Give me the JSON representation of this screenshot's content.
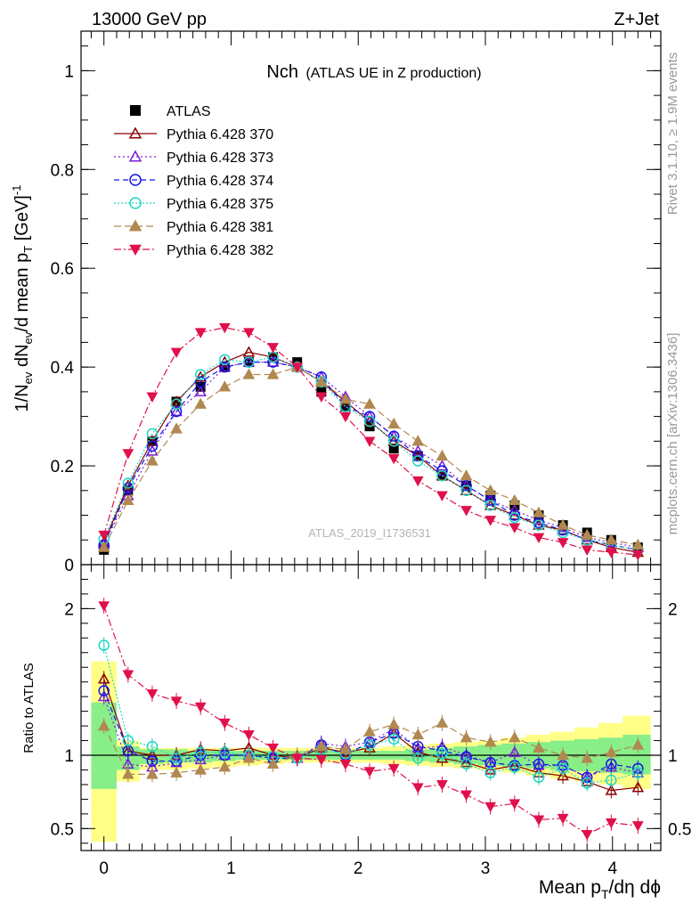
{
  "header": {
    "left": "13000 GeV pp",
    "right": "Z+Jet"
  },
  "side_text": {
    "rivet": "Rivet 3.1.10, ≥ 1.9M events",
    "mcplots": "mcplots.cern.ch [arXiv:1306.3436]"
  },
  "colors": {
    "atlas": "#000000",
    "p370": "#8b0000",
    "p373": "#7a1fd4",
    "p374": "#1414e6",
    "p375": "#20d6c4",
    "p381": "#b08850",
    "p382": "#e0104a",
    "band_yellow": "#ffff88",
    "band_green": "#88ee88"
  },
  "chart_data": [
    {
      "type": "line",
      "title": "Nch",
      "subtitle": "(ATLAS UE in Z production)",
      "watermark": "ATLAS_2019_I1736531",
      "ylabel": "1/N_ev dN_ev/d mean p_T [GeV]^-1",
      "ylim": [
        0,
        1.08
      ],
      "yticks": [
        0,
        0.2,
        0.4,
        0.6,
        0.8,
        1
      ],
      "ytick_labels": [
        "0",
        "0.2",
        "0.4",
        "0.6",
        "0.8",
        "1"
      ],
      "xlim": [
        -0.18,
        4.38
      ],
      "legend_position": "top-left",
      "x": [
        0.0,
        0.19,
        0.38,
        0.57,
        0.76,
        0.95,
        1.14,
        1.33,
        1.52,
        1.71,
        1.9,
        2.09,
        2.28,
        2.47,
        2.66,
        2.85,
        3.04,
        3.23,
        3.42,
        3.61,
        3.8,
        3.99,
        4.2
      ],
      "series": [
        {
          "name": "ATLAS",
          "key": "atlas",
          "marker": "square-filled",
          "dash": "none",
          "values": [
            0.03,
            0.15,
            0.25,
            0.33,
            0.36,
            0.4,
            0.41,
            0.42,
            0.41,
            0.35,
            0.32,
            0.28,
            0.235,
            0.22,
            0.18,
            0.16,
            0.14,
            0.12,
            0.1,
            0.08,
            0.065,
            0.05,
            0.035
          ]
        },
        {
          "name": "Pythia 6.428 370",
          "key": "p370",
          "marker": "triangle-open",
          "dash": "none",
          "values": [
            0.045,
            0.16,
            0.25,
            0.33,
            0.38,
            0.41,
            0.43,
            0.42,
            0.4,
            0.37,
            0.33,
            0.29,
            0.25,
            0.22,
            0.18,
            0.15,
            0.12,
            0.1,
            0.08,
            0.07,
            0.05,
            0.035,
            0.025
          ]
        },
        {
          "name": "Pythia 6.428 373",
          "key": "p373",
          "marker": "triangle-open",
          "dash": "2,3",
          "values": [
            0.042,
            0.14,
            0.23,
            0.31,
            0.35,
            0.4,
            0.41,
            0.41,
            0.4,
            0.38,
            0.34,
            0.3,
            0.26,
            0.23,
            0.2,
            0.16,
            0.13,
            0.11,
            0.09,
            0.075,
            0.055,
            0.045,
            0.035
          ]
        },
        {
          "name": "Pythia 6.428 374",
          "key": "p374",
          "marker": "circle-open",
          "dash": "6,4",
          "values": [
            0.04,
            0.155,
            0.24,
            0.31,
            0.37,
            0.4,
            0.41,
            0.41,
            0.4,
            0.38,
            0.32,
            0.3,
            0.26,
            0.22,
            0.19,
            0.16,
            0.13,
            0.1,
            0.085,
            0.07,
            0.05,
            0.04,
            0.03
          ]
        },
        {
          "name": "Pythia 6.428 375",
          "key": "p375",
          "marker": "circle-open",
          "dash": "2,2",
          "values": [
            0.052,
            0.165,
            0.265,
            0.325,
            0.385,
            0.415,
            0.41,
            0.42,
            0.4,
            0.37,
            0.32,
            0.29,
            0.25,
            0.21,
            0.18,
            0.15,
            0.12,
            0.095,
            0.08,
            0.065,
            0.05,
            0.04,
            0.03
          ]
        },
        {
          "name": "Pythia 6.428 381",
          "key": "p381",
          "marker": "triangle-filled",
          "dash": "8,4",
          "values": [
            0.035,
            0.13,
            0.21,
            0.275,
            0.325,
            0.36,
            0.385,
            0.385,
            0.4,
            0.37,
            0.335,
            0.325,
            0.285,
            0.25,
            0.22,
            0.18,
            0.15,
            0.13,
            0.105,
            0.08,
            0.06,
            0.05,
            0.04
          ]
        },
        {
          "name": "Pythia 6.428 382",
          "key": "p382",
          "marker": "triangle-down-filled",
          "dash": "8,3,2,3",
          "values": [
            0.06,
            0.225,
            0.34,
            0.43,
            0.47,
            0.48,
            0.47,
            0.44,
            0.4,
            0.34,
            0.3,
            0.25,
            0.215,
            0.17,
            0.14,
            0.11,
            0.09,
            0.075,
            0.055,
            0.045,
            0.03,
            0.025,
            0.02
          ]
        }
      ]
    },
    {
      "type": "line",
      "ylabel": "Ratio to ATLAS",
      "xlabel": "Mean p_T/dη dϕ",
      "ylim": [
        0.35,
        2.3
      ],
      "yticks": [
        0.5,
        1,
        2
      ],
      "ytick_labels": [
        "0.5",
        "1",
        "2"
      ],
      "xlim": [
        -0.18,
        4.38
      ],
      "xticks": [
        0,
        1,
        2,
        3,
        4
      ],
      "xtick_labels": [
        "0",
        "1",
        "2",
        "3",
        "4"
      ],
      "reference_line": 1,
      "bands": {
        "edges": [
          -0.1,
          0.1,
          0.28,
          0.47,
          0.66,
          0.85,
          1.04,
          1.23,
          1.42,
          1.61,
          1.8,
          1.99,
          2.18,
          2.37,
          2.56,
          2.75,
          2.94,
          3.13,
          3.32,
          3.51,
          3.7,
          3.89,
          4.08,
          4.3
        ],
        "yellow_lo": [
          0.41,
          0.82,
          0.9,
          0.9,
          0.91,
          0.92,
          0.93,
          0.94,
          0.95,
          0.95,
          0.95,
          0.95,
          0.94,
          0.93,
          0.92,
          0.91,
          0.9,
          0.88,
          0.86,
          0.84,
          0.82,
          0.8,
          0.77
        ],
        "yellow_hi": [
          1.64,
          1.1,
          1.05,
          1.05,
          1.05,
          1.05,
          1.05,
          1.05,
          1.05,
          1.05,
          1.05,
          1.05,
          1.06,
          1.07,
          1.08,
          1.09,
          1.1,
          1.12,
          1.14,
          1.16,
          1.19,
          1.22,
          1.27
        ],
        "green_lo": [
          0.77,
          0.9,
          0.94,
          0.95,
          0.95,
          0.96,
          0.97,
          0.97,
          0.97,
          0.97,
          0.97,
          0.97,
          0.97,
          0.96,
          0.95,
          0.94,
          0.93,
          0.92,
          0.91,
          0.9,
          0.89,
          0.88,
          0.87
        ],
        "green_hi": [
          1.36,
          1.06,
          1.04,
          1.04,
          1.03,
          1.03,
          1.03,
          1.03,
          1.03,
          1.03,
          1.03,
          1.03,
          1.03,
          1.04,
          1.05,
          1.06,
          1.07,
          1.08,
          1.09,
          1.1,
          1.11,
          1.12,
          1.14
        ]
      },
      "series": [
        {
          "key": "p370",
          "marker": "triangle-open",
          "dash": "none",
          "values": [
            1.52,
            1.03,
            1.0,
            1.0,
            1.04,
            1.03,
            1.05,
            1.0,
            0.98,
            1.05,
            1.02,
            1.05,
            1.15,
            1.02,
            0.98,
            0.95,
            0.9,
            0.93,
            0.88,
            0.86,
            0.82,
            0.76,
            0.78
          ]
        },
        {
          "key": "p373",
          "marker": "triangle-open",
          "dash": "2,3",
          "values": [
            1.4,
            0.94,
            0.92,
            0.95,
            0.97,
            1.0,
            1.0,
            0.98,
            0.98,
            1.08,
            1.06,
            1.09,
            1.18,
            1.05,
            1.06,
            1.0,
            0.95,
            1.02,
            0.93,
            0.93,
            0.85,
            0.92,
            0.88
          ]
        },
        {
          "key": "p374",
          "marker": "circle-open",
          "dash": "6,4",
          "values": [
            1.44,
            1.03,
            0.96,
            0.96,
            1.0,
            1.0,
            1.0,
            0.98,
            0.98,
            1.07,
            1.0,
            1.09,
            1.15,
            1.06,
            1.03,
            0.99,
            0.95,
            0.93,
            0.94,
            0.93,
            0.85,
            0.94,
            0.91
          ]
        },
        {
          "key": "p375",
          "marker": "circle-open",
          "dash": "2,2",
          "values": [
            1.75,
            1.1,
            1.06,
            0.98,
            1.02,
            1.02,
            1.0,
            0.99,
            0.98,
            1.04,
            1.01,
            1.07,
            1.11,
            0.98,
            1.01,
            0.94,
            0.88,
            0.92,
            0.85,
            0.91,
            0.81,
            0.83,
            0.88
          ]
        },
        {
          "key": "p381",
          "marker": "triangle-filled",
          "dash": "8,4",
          "values": [
            1.2,
            0.87,
            0.87,
            0.88,
            0.9,
            0.92,
            0.98,
            0.94,
            1.0,
            1.06,
            1.04,
            1.16,
            1.21,
            1.14,
            1.22,
            1.12,
            1.09,
            1.12,
            1.05,
            1.0,
            0.98,
            1.02,
            1.07
          ]
        },
        {
          "key": "p382",
          "marker": "triangle-down-filled",
          "dash": "8,3,2,3",
          "values": [
            2.02,
            1.55,
            1.42,
            1.37,
            1.33,
            1.22,
            1.14,
            1.05,
            0.98,
            0.97,
            0.94,
            0.89,
            0.91,
            0.78,
            0.8,
            0.73,
            0.65,
            0.67,
            0.56,
            0.57,
            0.46,
            0.54,
            0.52
          ]
        }
      ]
    }
  ]
}
